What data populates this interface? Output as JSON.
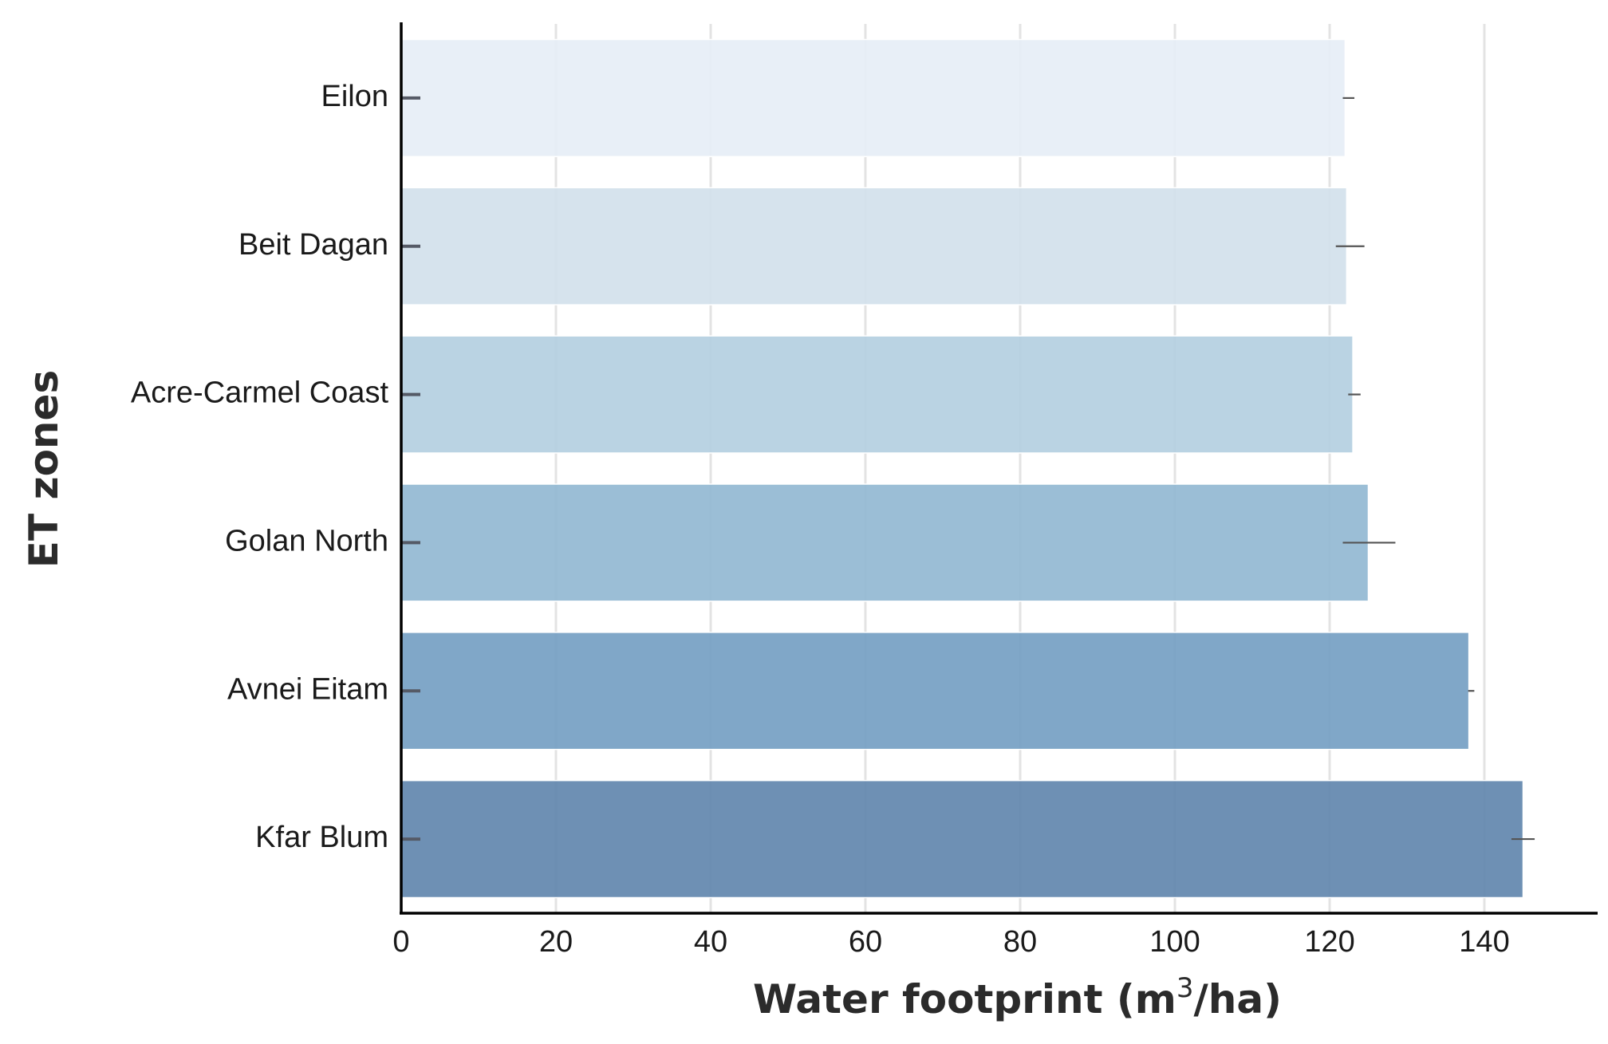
{
  "chart_data": {
    "type": "bar",
    "orientation": "horizontal",
    "categories": [
      "Eilon",
      "Beit Dagan",
      "Acre-Carmel Coast",
      "Golan North",
      "Avnei Eitam",
      "Kfar Blum"
    ],
    "values": [
      122,
      122.2,
      123,
      125,
      138,
      145
    ],
    "error_bars": [
      {
        "low": 121.7,
        "high": 123.2
      },
      {
        "low": 120.8,
        "high": 124.5
      },
      {
        "low": 122.4,
        "high": 124.0
      },
      {
        "low": 121.7,
        "high": 128.5
      },
      {
        "low": 137.9,
        "high": 138.7
      },
      {
        "low": 143.5,
        "high": 146.5
      }
    ],
    "colors": [
      "#e6eef6",
      "#d3e1ec",
      "#b4cfe1",
      "#93b8d2",
      "#75a0c3",
      "#6287ae"
    ],
    "xlabel_main": "Water footprint (m",
    "xlabel_sup": "3",
    "xlabel_end": "/ha)",
    "ylabel": "ET zones",
    "xlim": [
      0,
      155
    ],
    "xticks": [
      0,
      20,
      40,
      60,
      80,
      100,
      120,
      140
    ],
    "grid": true
  }
}
